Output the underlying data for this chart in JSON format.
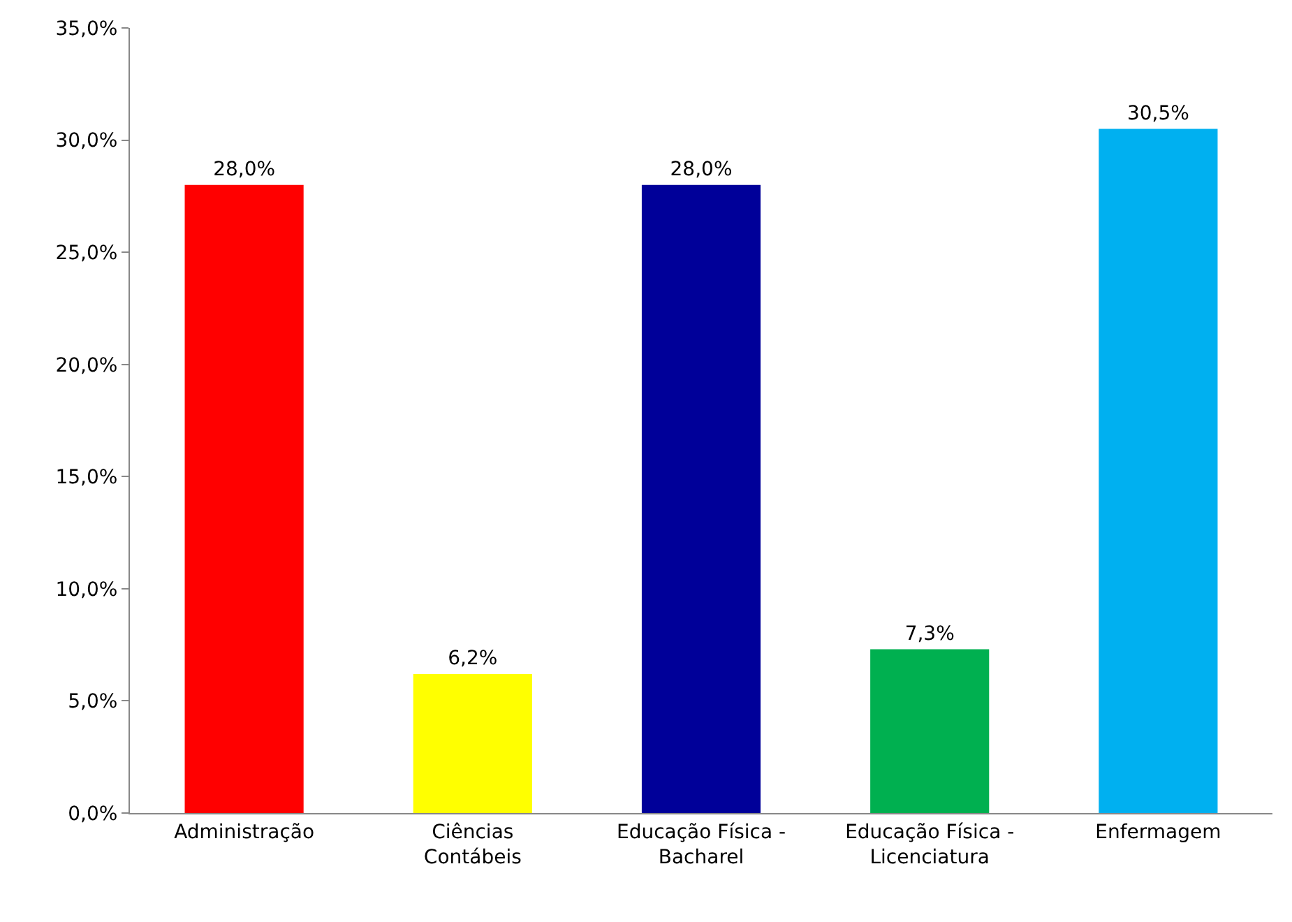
{
  "chart_data": {
    "type": "bar",
    "categories": [
      "Administração",
      "Ciências Contábeis",
      "Educação Física - Bacharel",
      "Educação Física - Licenciatura",
      "Enfermagem"
    ],
    "values": [
      28.0,
      6.2,
      28.0,
      7.3,
      30.5
    ],
    "colors": [
      "#ff0000",
      "#ffff00",
      "#000099",
      "#00b050",
      "#00b0f0"
    ],
    "value_labels": [
      "28,0%",
      "6,2%",
      "28,0%",
      "7,3%",
      "30,5%"
    ],
    "ylim": [
      0,
      35
    ],
    "yticks": [
      {
        "value": 0,
        "label": "0,0%"
      },
      {
        "value": 5,
        "label": "5,0%"
      },
      {
        "value": 10,
        "label": "10,0%"
      },
      {
        "value": 15,
        "label": "15,0%"
      },
      {
        "value": 20,
        "label": "20,0%"
      },
      {
        "value": 25,
        "label": "25,0%"
      },
      {
        "value": 30,
        "label": "30,0%"
      },
      {
        "value": 35,
        "label": "35,0%"
      }
    ],
    "grid": false
  }
}
